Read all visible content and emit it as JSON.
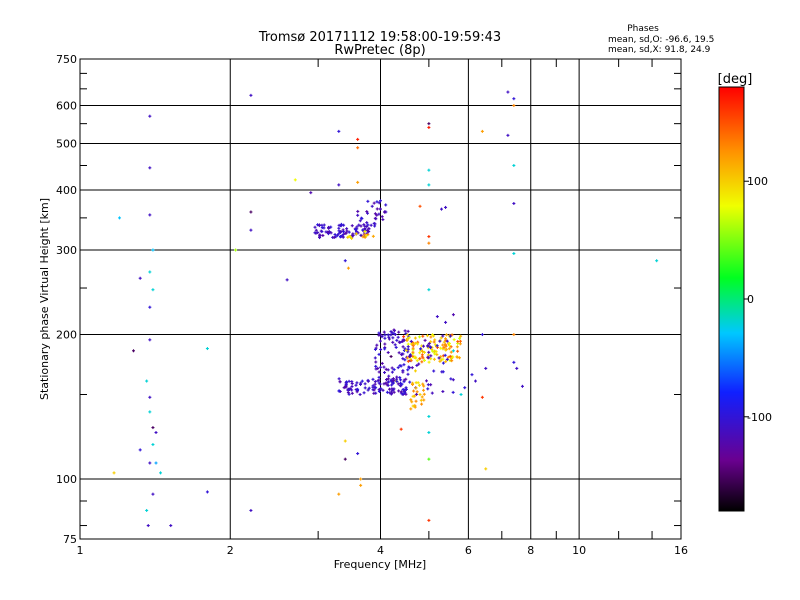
{
  "chart_data": {
    "type": "scatter",
    "title": "Tromsø 20171112 19:58:00-19:59:43",
    "subtitle": "RwPretec (8p)",
    "xlabel": "Frequency [MHz]",
    "ylabel": "Stationary phase Virtual Height [km]",
    "x_scale": "log",
    "y_scale": "log",
    "xlim": [
      1,
      16
    ],
    "ylim": [
      75,
      750
    ],
    "x_ticks": [
      1,
      2,
      4,
      6,
      8,
      10,
      16
    ],
    "x_tick_labels": [
      "1",
      "2",
      "4",
      "6",
      "8",
      "10",
      "16"
    ],
    "y_ticks": [
      75,
      100,
      200,
      300,
      400,
      500,
      600,
      750
    ],
    "y_tick_labels": [
      "75",
      "100",
      "200",
      "300",
      "400",
      "500",
      "600",
      "750"
    ],
    "grid": true,
    "stats": {
      "heading": "Phases",
      "line_o": "mean, sd,O: -96.6, 19.5",
      "line_x": "mean, sd,X:  91.8, 24.9"
    },
    "colorbar": {
      "label": "[deg]",
      "range": [
        -180,
        180
      ],
      "ticks": [
        100,
        0,
        -100
      ],
      "tick_labels": [
        "100",
        "0",
        "-100"
      ],
      "colormap": "rainbow"
    },
    "points": [
      [
        1.38,
        570,
        -110
      ],
      [
        2.2,
        630,
        -110
      ],
      [
        3.3,
        530,
        -100
      ],
      [
        3.6,
        510,
        170
      ],
      [
        3.6,
        490,
        140
      ],
      [
        5.0,
        550,
        -150
      ],
      [
        5.0,
        540,
        170
      ],
      [
        7.2,
        640,
        -110
      ],
      [
        7.4,
        620,
        -100
      ],
      [
        7.4,
        600,
        130
      ],
      [
        6.4,
        530,
        120
      ],
      [
        7.2,
        520,
        -110
      ],
      [
        1.38,
        445,
        -110
      ],
      [
        2.7,
        420,
        80
      ],
      [
        3.3,
        410,
        -110
      ],
      [
        3.6,
        415,
        120
      ],
      [
        5.0,
        440,
        -20
      ],
      [
        5.0,
        410,
        -20
      ],
      [
        7.4,
        450,
        -20
      ],
      [
        1.2,
        350,
        -30
      ],
      [
        1.38,
        355,
        -110
      ],
      [
        1.4,
        300,
        -30
      ],
      [
        2.2,
        360,
        -150
      ],
      [
        2.2,
        330,
        -110
      ],
      [
        2.9,
        395,
        -120
      ],
      [
        4.0,
        380,
        -100
      ],
      [
        4.0,
        365,
        -120
      ],
      [
        3.85,
        370,
        -110
      ],
      [
        3.9,
        340,
        -110
      ],
      [
        4.1,
        360,
        -110
      ],
      [
        4.8,
        370,
        150
      ],
      [
        5.3,
        365,
        -110
      ],
      [
        5.4,
        368,
        -110
      ],
      [
        5.0,
        320,
        160
      ],
      [
        5.0,
        310,
        130
      ],
      [
        7.4,
        375,
        -110
      ],
      [
        7.4,
        295,
        -20
      ],
      [
        2.05,
        300,
        60
      ],
      [
        2.6,
        260,
        -110
      ],
      [
        3.4,
        285,
        -100
      ],
      [
        3.45,
        275,
        120
      ],
      [
        1.32,
        262,
        -110
      ],
      [
        1.38,
        270,
        -20
      ],
      [
        1.4,
        248,
        -20
      ],
      [
        1.38,
        228,
        -100
      ],
      [
        1.38,
        195,
        -110
      ],
      [
        1.28,
        185,
        -150
      ],
      [
        1.8,
        187,
        -20
      ],
      [
        1.36,
        160,
        -20
      ],
      [
        1.38,
        148,
        -110
      ],
      [
        1.38,
        138,
        -20
      ],
      [
        1.4,
        128,
        -150
      ],
      [
        1.42,
        125,
        -110
      ],
      [
        1.32,
        115,
        -100
      ],
      [
        1.4,
        118,
        -20
      ],
      [
        1.38,
        108,
        -110
      ],
      [
        1.42,
        108,
        -40
      ],
      [
        1.45,
        103,
        -20
      ],
      [
        1.17,
        103,
        100
      ],
      [
        1.4,
        93,
        -110
      ],
      [
        1.8,
        94,
        -100
      ],
      [
        1.36,
        86,
        -20
      ],
      [
        1.37,
        80,
        -110
      ],
      [
        1.52,
        80,
        -110
      ],
      [
        2.2,
        86,
        -110
      ],
      [
        3.4,
        120,
        100
      ],
      [
        3.4,
        110,
        -150
      ],
      [
        3.6,
        113,
        -100
      ],
      [
        3.65,
        100,
        120
      ],
      [
        3.65,
        97,
        120
      ],
      [
        3.3,
        93,
        120
      ],
      [
        4.4,
        127,
        160
      ],
      [
        5.0,
        125,
        -20
      ],
      [
        5.0,
        110,
        40
      ],
      [
        6.5,
        105,
        100
      ],
      [
        5.0,
        82,
        160
      ],
      [
        5.0,
        248,
        -20
      ],
      [
        5.2,
        218,
        -110
      ],
      [
        5.6,
        220,
        -120
      ],
      [
        7.4,
        200,
        130
      ],
      [
        5.4,
        212,
        -110
      ],
      [
        6.4,
        200,
        -100
      ],
      [
        6.5,
        170,
        -110
      ],
      [
        7.4,
        175,
        -100
      ],
      [
        7.5,
        170,
        -110
      ],
      [
        7.7,
        156,
        -110
      ],
      [
        6.2,
        160,
        -110
      ],
      [
        6.1,
        165,
        -100
      ],
      [
        6.4,
        148,
        160
      ],
      [
        5.9,
        155,
        -100
      ],
      [
        5.8,
        150,
        -20
      ],
      [
        4.7,
        168,
        100
      ],
      [
        4.8,
        150,
        100
      ],
      [
        4.6,
        140,
        120
      ],
      [
        5.0,
        135,
        -20
      ],
      [
        4.2,
        180,
        -150
      ],
      [
        4.4,
        172,
        -100
      ],
      [
        4.3,
        160,
        80
      ],
      [
        4.5,
        155,
        -100
      ],
      [
        4.45,
        198,
        160
      ],
      [
        4.3,
        188,
        -100
      ],
      [
        5.4,
        190,
        160
      ],
      [
        5.2,
        188,
        160
      ],
      [
        5.6,
        185,
        -20
      ],
      [
        14.3,
        285,
        -20
      ]
    ]
  }
}
